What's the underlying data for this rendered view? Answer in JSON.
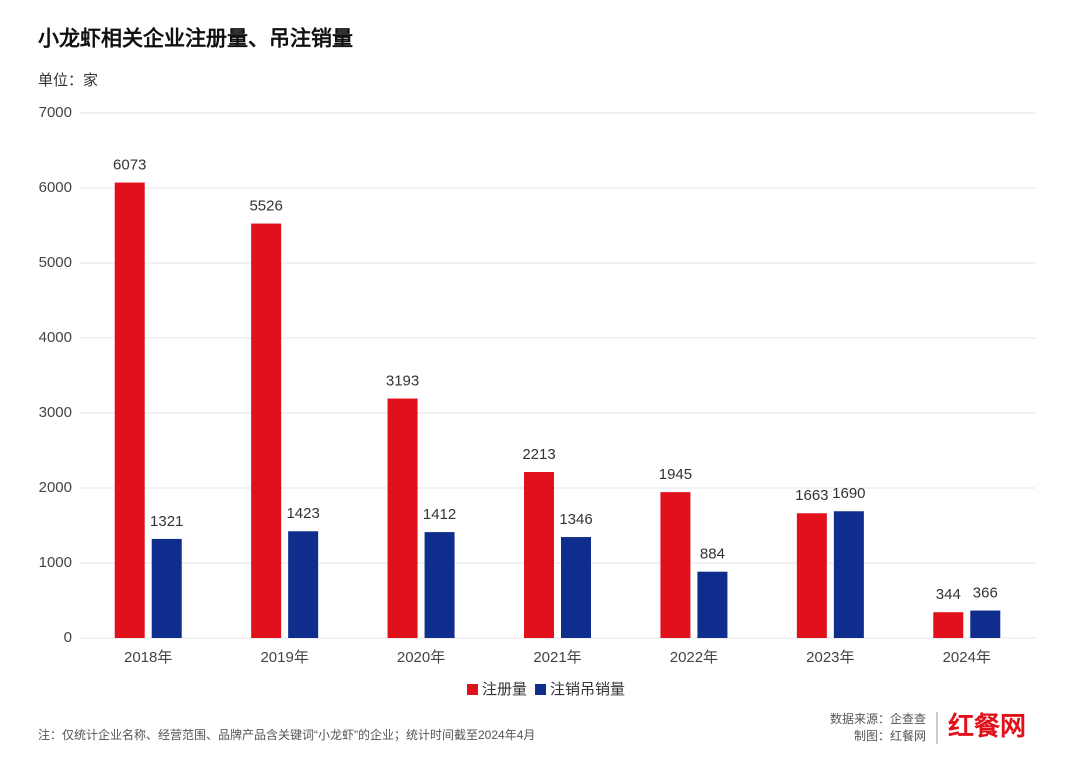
{
  "chart_data": {
    "type": "bar",
    "title": "小龙虾相关企业注册量、吊注销量",
    "subtitle": "单位：家",
    "categories": [
      "2018年",
      "2019年",
      "2020年",
      "2021年",
      "2022年",
      "2023年",
      "2024年"
    ],
    "series": [
      {
        "name": "注册量",
        "color": "#e0111b",
        "values": [
          6073,
          5526,
          3193,
          2213,
          1945,
          1663,
          344
        ]
      },
      {
        "name": "注销吊销量",
        "color": "#0e2d8c",
        "values": [
          1321,
          1423,
          1412,
          1346,
          884,
          1690,
          366
        ]
      }
    ],
    "ylim": [
      0,
      7000
    ],
    "yticks": [
      0,
      1000,
      2000,
      3000,
      4000,
      5000,
      6000,
      7000
    ],
    "grid": true,
    "note": "注：仅统计企业名称、经营范围、品牌产品含关键词“小龙虾”的企业；统计时间截至2024年4月",
    "source": "数据来源：企查查",
    "credit": "制图：红餐网",
    "logo": "红餐网"
  }
}
